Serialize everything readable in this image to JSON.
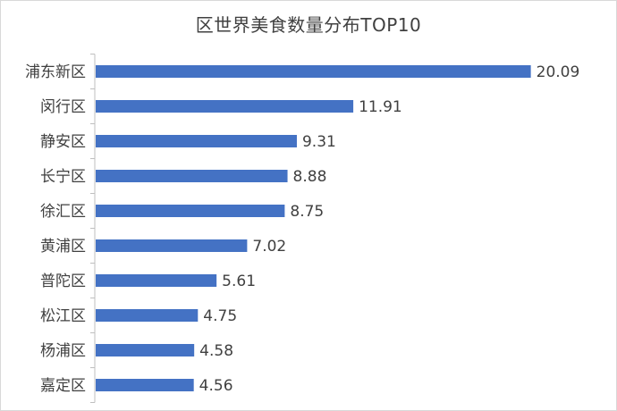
{
  "chart_data": {
    "type": "bar",
    "orientation": "horizontal",
    "title": "区世界美食数量分布TOP10",
    "categories": [
      "浦东新区",
      "闵行区",
      "静安区",
      "长宁区",
      "徐汇区",
      "黄浦区",
      "普陀区",
      "松江区",
      "杨浦区",
      "嘉定区"
    ],
    "values": [
      20.09,
      11.91,
      9.31,
      8.88,
      8.75,
      7.02,
      5.61,
      4.75,
      4.58,
      4.56
    ],
    "value_labels": [
      "20.09",
      "11.91",
      "9.31",
      "8.88",
      "8.75",
      "7.02",
      "5.61",
      "4.75",
      "4.58",
      "4.56"
    ],
    "xlabel": "",
    "ylabel": "",
    "xlim": [
      0,
      22
    ],
    "grid": false,
    "legend": "none",
    "bar_color": "#4472C4",
    "axis_color": "#BFBFBF"
  }
}
